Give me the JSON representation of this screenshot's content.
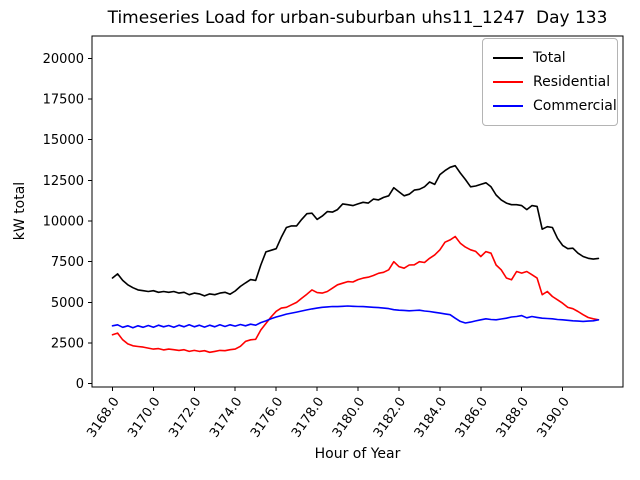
{
  "chart_data": {
    "type": "line",
    "title": "Timeseries Load for urban-suburban uhs11_1247  Day 133",
    "xlabel": "Hour of Year",
    "ylabel": "kW total",
    "x_start": 3168.0,
    "x_step": 0.25,
    "xlim": [
      3167.0,
      3192.95
    ],
    "ylim": [
      -200,
      21370
    ],
    "x_ticks": [
      3168,
      3170,
      3172,
      3174,
      3176,
      3178,
      3180,
      3182,
      3184,
      3186,
      3188,
      3190
    ],
    "x_tick_labels": [
      "3168.0",
      "3170.0",
      "3172.0",
      "3174.0",
      "3176.0",
      "3178.0",
      "3180.0",
      "3182.0",
      "3184.0",
      "3186.0",
      "3188.0",
      "3190.0"
    ],
    "y_ticks": [
      0,
      2500,
      5000,
      7500,
      10000,
      12500,
      15000,
      17500,
      20000
    ],
    "y_tick_labels": [
      "0",
      "2500",
      "5000",
      "7500",
      "10000",
      "12500",
      "15000",
      "17500",
      "20000"
    ],
    "grid": false,
    "legend": {
      "position": "upper right"
    },
    "series": [
      {
        "name": "Total",
        "color": "#000000",
        "values": [
          6500,
          6750,
          6350,
          6080,
          5900,
          5770,
          5720,
          5670,
          5720,
          5620,
          5670,
          5620,
          5670,
          5570,
          5620,
          5470,
          5570,
          5520,
          5400,
          5520,
          5470,
          5570,
          5620,
          5500,
          5700,
          5980,
          6200,
          6400,
          6350,
          7300,
          8100,
          8200,
          8300,
          9000,
          9600,
          9700,
          9700,
          10100,
          10450,
          10480,
          10100,
          10300,
          10580,
          10550,
          10700,
          11050,
          11000,
          10950,
          11050,
          11150,
          11100,
          11350,
          11300,
          11450,
          11550,
          12050,
          11800,
          11550,
          11650,
          11900,
          11950,
          12100,
          12400,
          12250,
          12850,
          13100,
          13300,
          13400,
          12950,
          12550,
          12100,
          12150,
          12250,
          12350,
          12100,
          11600,
          11300,
          11100,
          11000,
          11000,
          10950,
          10700,
          10950,
          10900,
          9500,
          9650,
          9600,
          8940,
          8500,
          8300,
          8330,
          8020,
          7820,
          7710,
          7660,
          7700
        ]
      },
      {
        "name": "Residential",
        "color": "#ff0000",
        "values": [
          3010,
          3110,
          2700,
          2450,
          2330,
          2290,
          2250,
          2190,
          2130,
          2160,
          2080,
          2130,
          2090,
          2050,
          2090,
          1990,
          2050,
          1990,
          2030,
          1930,
          1990,
          2050,
          2030,
          2090,
          2130,
          2300,
          2600,
          2700,
          2730,
          3300,
          3700,
          4100,
          4450,
          4650,
          4700,
          4850,
          5000,
          5260,
          5500,
          5770,
          5600,
          5570,
          5670,
          5870,
          6080,
          6180,
          6280,
          6250,
          6400,
          6490,
          6550,
          6650,
          6790,
          6850,
          7000,
          7500,
          7200,
          7100,
          7300,
          7310,
          7500,
          7450,
          7710,
          7920,
          8230,
          8700,
          8840,
          9050,
          8640,
          8400,
          8230,
          8130,
          7820,
          8120,
          8020,
          7300,
          7000,
          6500,
          6390,
          6900,
          6800,
          6900,
          6700,
          6490,
          5470,
          5670,
          5360,
          5160,
          4950,
          4690,
          4610,
          4440,
          4240,
          4070,
          3990,
          3930
        ]
      },
      {
        "name": "Commercial",
        "color": "#0000ff",
        "values": [
          3560,
          3620,
          3470,
          3560,
          3440,
          3560,
          3470,
          3580,
          3470,
          3600,
          3500,
          3580,
          3470,
          3600,
          3500,
          3620,
          3500,
          3600,
          3480,
          3600,
          3500,
          3620,
          3520,
          3620,
          3540,
          3640,
          3560,
          3660,
          3600,
          3760,
          3860,
          3990,
          4100,
          4190,
          4280,
          4340,
          4400,
          4470,
          4540,
          4600,
          4650,
          4700,
          4720,
          4750,
          4740,
          4760,
          4780,
          4760,
          4750,
          4740,
          4720,
          4700,
          4680,
          4650,
          4620,
          4550,
          4520,
          4510,
          4480,
          4500,
          4520,
          4470,
          4440,
          4390,
          4340,
          4290,
          4240,
          4030,
          3830,
          3730,
          3790,
          3860,
          3930,
          3990,
          3950,
          3930,
          3980,
          4030,
          4100,
          4130,
          4190,
          4050,
          4130,
          4080,
          4030,
          4010,
          3990,
          3950,
          3930,
          3900,
          3870,
          3850,
          3830,
          3850,
          3870,
          3930
        ]
      }
    ]
  }
}
